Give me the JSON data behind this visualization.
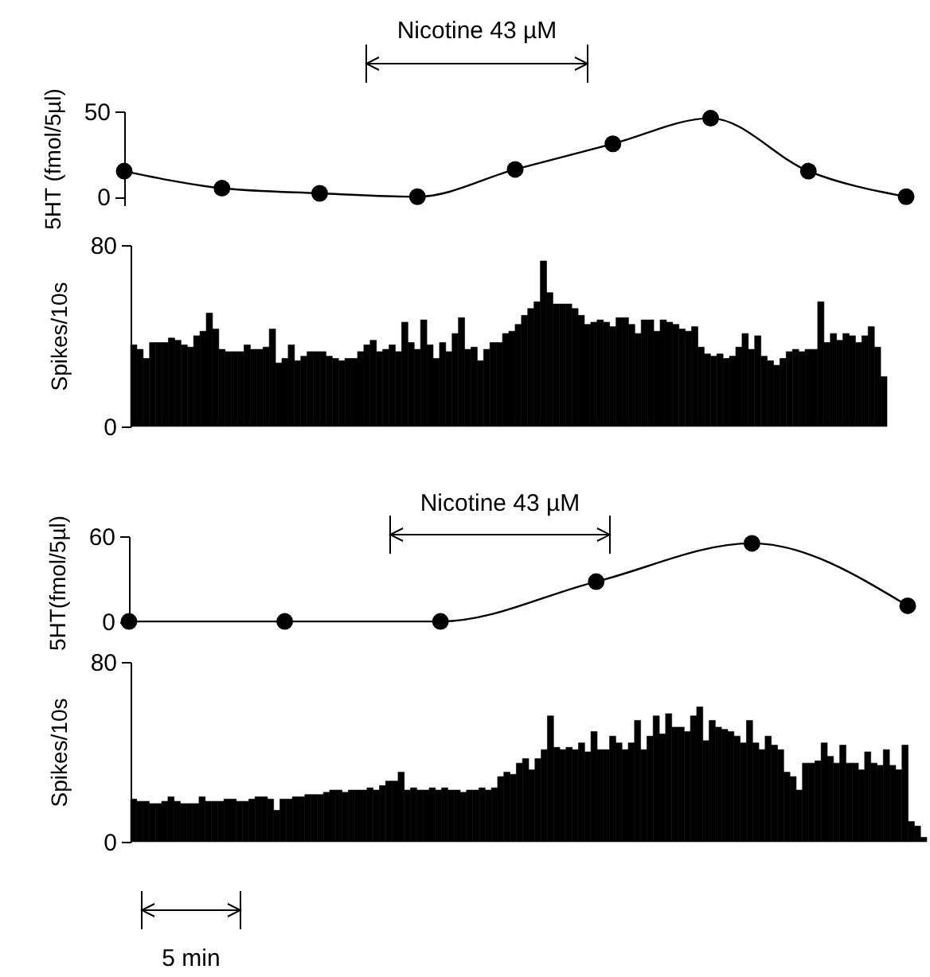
{
  "chart_data": [
    {
      "type": "line",
      "ylabel": "5HT (fmol/5µl)",
      "annotations": [
        "Nicotine 43 µM"
      ],
      "categories": [
        null,
        null,
        null,
        null,
        null,
        null,
        null,
        null,
        null
      ],
      "ylim": [
        -5,
        50
      ],
      "yticks": [
        0,
        50
      ],
      "marker": "circle",
      "tick_labels": "y",
      "series": [
        {
          "color": "#000000",
          "values": [
            15,
            5,
            2,
            0,
            16,
            31,
            46,
            15,
            0
          ]
        }
      ]
    },
    {
      "type": "bar",
      "ylabel": "Spikes/10s",
      "color": "#000000",
      "ylim": [
        0,
        80
      ],
      "yticks": [
        0,
        80
      ],
      "tick_labels": "y",
      "categories": [
        null,
        null,
        null,
        null,
        null,
        null,
        null,
        null,
        null,
        null,
        null,
        null,
        null,
        null,
        null,
        null,
        null,
        null,
        null,
        null,
        null,
        null,
        null,
        null,
        null,
        null,
        null,
        null,
        null,
        null,
        null,
        null,
        null,
        null,
        null,
        null,
        null,
        null,
        null,
        null,
        null,
        null,
        null,
        null,
        null,
        null,
        null,
        null,
        null,
        null,
        null,
        null,
        null,
        null,
        null,
        null,
        null,
        null,
        null,
        null,
        null,
        null,
        null,
        null,
        null,
        null,
        null,
        null,
        null,
        null,
        null,
        null,
        null,
        null,
        null,
        null,
        null,
        null,
        null,
        null,
        null,
        null,
        null,
        null,
        null,
        null,
        null,
        null,
        null,
        null,
        null,
        null,
        null,
        null,
        null,
        null,
        null,
        null,
        null,
        null,
        null,
        null,
        null,
        null,
        null,
        null,
        null,
        null,
        null,
        null,
        null,
        null,
        null,
        null,
        null,
        null,
        null,
        null,
        null,
        null
      ],
      "values": [
        36,
        34,
        30,
        37,
        37,
        37,
        39,
        38,
        36,
        35,
        40,
        42,
        50,
        43,
        34,
        33,
        33,
        33,
        36,
        34,
        34,
        35,
        43,
        28,
        30,
        36,
        29,
        31,
        33,
        33,
        33,
        31,
        30,
        29,
        30,
        30,
        33,
        36,
        38,
        33,
        34,
        36,
        33,
        46,
        37,
        34,
        47,
        36,
        30,
        37,
        33,
        41,
        48,
        34,
        35,
        29,
        34,
        37,
        37,
        41,
        42,
        45,
        49,
        52,
        55,
        73,
        59,
        54,
        54,
        54,
        52,
        49,
        45,
        46,
        47,
        46,
        44,
        48,
        48,
        45,
        41,
        47,
        47,
        42,
        47,
        46,
        45,
        43,
        42,
        44,
        35,
        32,
        31,
        32,
        30,
        31,
        35,
        41,
        34,
        40,
        31,
        29,
        27,
        30,
        33,
        34,
        33,
        34,
        34,
        55,
        37,
        41,
        38,
        41,
        40,
        37,
        40,
        44,
        35,
        22
      ]
    },
    {
      "type": "line",
      "ylabel": "5HT(fmol/5µl)",
      "annotations": [
        "Nicotine 43 µM"
      ],
      "categories": [
        null,
        null,
        null,
        null,
        null,
        null
      ],
      "ylim": [
        -5,
        60
      ],
      "yticks": [
        0,
        60
      ],
      "marker": "circle",
      "tick_labels": "y",
      "series": [
        {
          "color": "#000000",
          "values": [
            0,
            0,
            0,
            28,
            55,
            11
          ]
        }
      ]
    },
    {
      "type": "bar",
      "ylabel": "Spikes/10s",
      "color": "#000000",
      "ylim": [
        0,
        80
      ],
      "yticks": [
        0,
        80
      ],
      "tick_labels": "y",
      "annotations": [
        "5 min"
      ],
      "categories": [
        null,
        null,
        null,
        null,
        null,
        null,
        null,
        null,
        null,
        null,
        null,
        null,
        null,
        null,
        null,
        null,
        null,
        null,
        null,
        null,
        null,
        null,
        null,
        null,
        null,
        null,
        null,
        null,
        null,
        null,
        null,
        null,
        null,
        null,
        null,
        null,
        null,
        null,
        null,
        null,
        null,
        null,
        null,
        null,
        null,
        null,
        null,
        null,
        null,
        null,
        null,
        null,
        null,
        null,
        null,
        null,
        null,
        null,
        null,
        null,
        null,
        null,
        null,
        null,
        null,
        null,
        null,
        null,
        null,
        null,
        null,
        null,
        null,
        null,
        null,
        null,
        null,
        null,
        null,
        null,
        null,
        null,
        null,
        null,
        null,
        null,
        null,
        null,
        null,
        null,
        null,
        null,
        null,
        null,
        null,
        null,
        null,
        null,
        null,
        null,
        null,
        null,
        null,
        null,
        null,
        null,
        null,
        null,
        null,
        null,
        null,
        null,
        null,
        null,
        null,
        null,
        null,
        null,
        null,
        null,
        null,
        null,
        null,
        null,
        null,
        null,
        null,
        null
      ],
      "values": [
        19,
        18,
        18,
        17,
        17,
        18,
        20,
        18,
        17,
        17,
        17,
        20,
        18,
        18,
        18,
        19,
        19,
        18,
        18,
        19,
        20,
        20,
        19,
        14,
        19,
        19,
        20,
        20,
        21,
        21,
        21,
        22,
        23,
        23,
        22,
        23,
        23,
        23,
        24,
        23,
        25,
        27,
        27,
        31,
        23,
        24,
        23,
        23,
        24,
        23,
        24,
        23,
        23,
        22,
        23,
        23,
        24,
        23,
        24,
        29,
        31,
        30,
        35,
        37,
        32,
        37,
        41,
        56,
        42,
        41,
        42,
        41,
        44,
        40,
        49,
        41,
        41,
        47,
        44,
        41,
        44,
        54,
        41,
        47,
        56,
        48,
        57,
        51,
        51,
        49,
        56,
        60,
        45,
        54,
        51,
        50,
        49,
        47,
        44,
        54,
        44,
        41,
        47,
        43,
        41,
        31,
        29,
        23,
        35,
        35,
        36,
        44,
        38,
        35,
        43,
        35,
        35,
        32,
        40,
        35,
        34,
        41,
        34,
        32,
        43,
        9,
        7,
        2
      ]
    }
  ]
}
